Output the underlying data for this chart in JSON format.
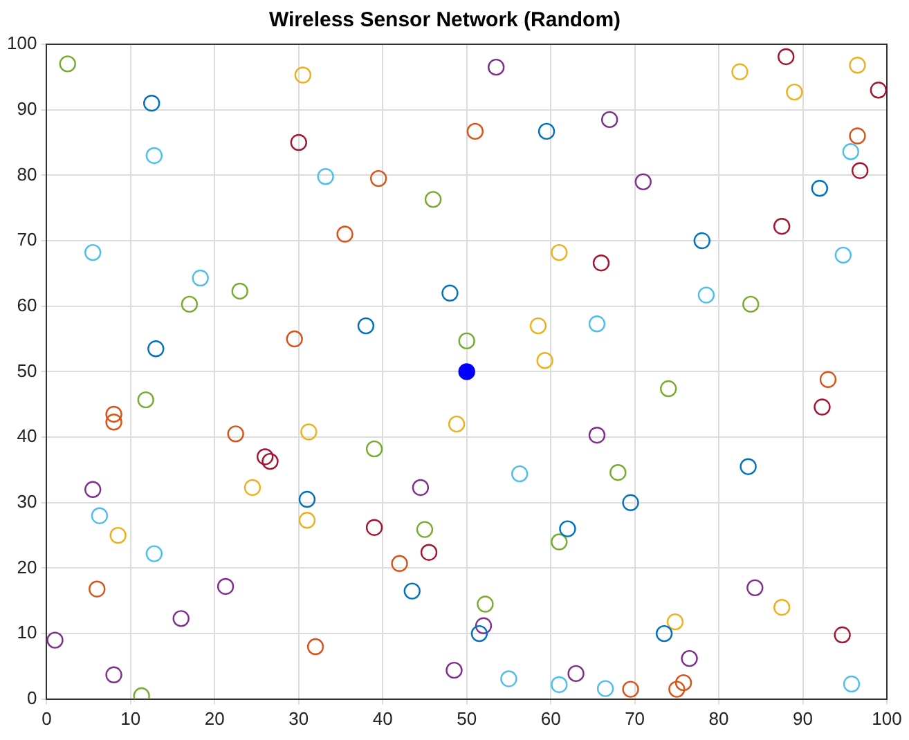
{
  "chart_data": {
    "type": "scatter",
    "title": "Wireless Sensor Network (Random)",
    "xlim": [
      0,
      100
    ],
    "ylim": [
      0,
      100
    ],
    "xticks": [
      0,
      10,
      20,
      30,
      40,
      50,
      60,
      70,
      80,
      90,
      100
    ],
    "yticks": [
      0,
      10,
      20,
      30,
      40,
      50,
      60,
      70,
      80,
      90,
      100
    ],
    "grid": true,
    "legend": false,
    "marker": "circle",
    "series": [
      {
        "color": "#0072bd",
        "x": [
          12.5,
          13,
          38,
          48,
          59.5,
          78,
          92,
          31,
          43.5,
          51.5,
          62,
          69.5,
          73.5,
          83.5
        ],
        "values": [
          91,
          53.5,
          57,
          62,
          86.7,
          70,
          78,
          30.5,
          16.5,
          10,
          26,
          30,
          10,
          35.5
        ]
      },
      {
        "color": "#d95319",
        "x": [
          35.5,
          39.5,
          51,
          96.5,
          29.5,
          8,
          8,
          22.5,
          6,
          42,
          32,
          93,
          69.5,
          75,
          75.8
        ],
        "values": [
          71,
          79.5,
          86.7,
          86,
          55,
          43.5,
          42.3,
          40.5,
          16.8,
          20.7,
          8,
          48.8,
          1.5,
          1.5,
          2.5
        ]
      },
      {
        "color": "#edb120",
        "x": [
          30.5,
          82.5,
          96.5,
          89,
          61,
          58.5,
          59.3,
          48.8,
          31.2,
          24.5,
          31,
          8.5,
          74.8,
          87.5
        ],
        "values": [
          95.3,
          95.8,
          96.8,
          92.7,
          68.2,
          57,
          51.7,
          42,
          40.8,
          32.3,
          27.3,
          25,
          11.8,
          14
        ]
      },
      {
        "color": "#7e2f8e",
        "x": [
          53.5,
          67,
          71,
          65.5,
          44.5,
          84.3,
          21.3,
          16,
          1,
          8,
          48.5,
          52,
          63,
          76.5,
          5.5
        ],
        "values": [
          96.5,
          88.5,
          79,
          40.3,
          32.3,
          17,
          17.2,
          12.3,
          9,
          3.7,
          4.4,
          11.2,
          3.9,
          6.2,
          32
        ]
      },
      {
        "color": "#77ac30",
        "x": [
          2.5,
          46,
          23,
          17,
          50,
          11.8,
          39,
          45,
          52.2,
          61,
          68,
          74,
          83.8,
          11.3
        ],
        "values": [
          97,
          76.3,
          62.3,
          60.3,
          54.7,
          45.7,
          38.2,
          25.9,
          14.5,
          24,
          34.6,
          47.4,
          60.3,
          0.5
        ]
      },
      {
        "color": "#4dbeee",
        "x": [
          12.8,
          33.2,
          5.5,
          18.3,
          65.5,
          78.5,
          95.7,
          94.8,
          6.3,
          12.8,
          56.3,
          55,
          61,
          66.5,
          95.8
        ],
        "values": [
          83,
          79.8,
          68.2,
          64.3,
          57.3,
          61.7,
          83.6,
          67.8,
          28,
          22.2,
          34.4,
          3.1,
          2.2,
          1.6,
          2.3
        ]
      },
      {
        "color": "#a2142f",
        "x": [
          30,
          66,
          87.5,
          96.8,
          88,
          99,
          92.3,
          26,
          26.6,
          39,
          45.5,
          94.7
        ],
        "values": [
          85,
          66.6,
          72.2,
          80.7,
          98.1,
          93,
          44.6,
          37,
          36.3,
          26.2,
          22.4,
          9.8
        ]
      },
      {
        "color": "#0000ff",
        "x": [
          50
        ],
        "values": [
          50
        ]
      }
    ]
  }
}
